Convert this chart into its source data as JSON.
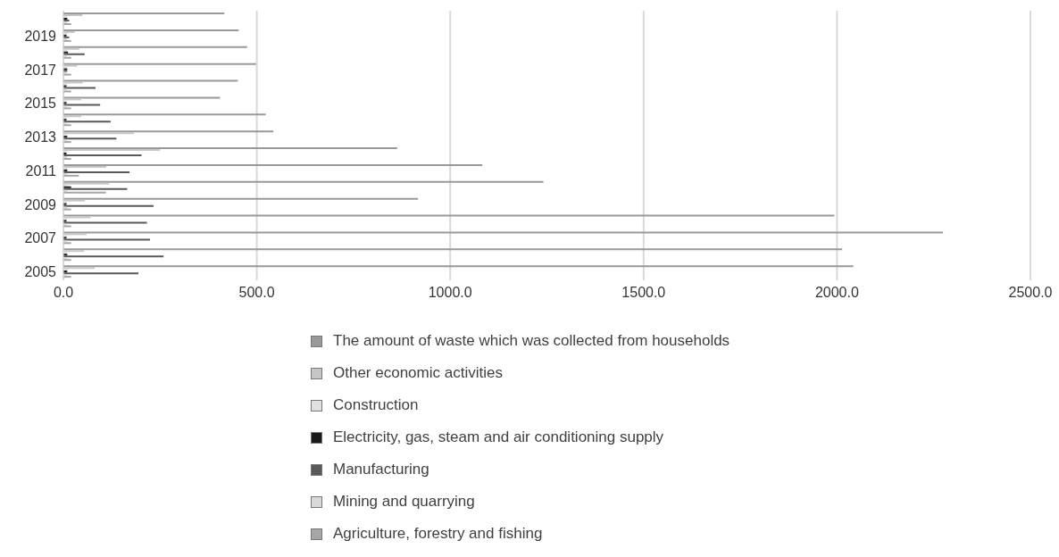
{
  "chart_data": {
    "type": "bar",
    "orientation": "horizontal",
    "categories": [
      null,
      "2019",
      null,
      "2017",
      null,
      "2015",
      null,
      "2013",
      null,
      "2011",
      null,
      "2009",
      null,
      "2007",
      null,
      "2005"
    ],
    "series": [
      {
        "name": "The amount of waste which was collected from households",
        "color": "#999999",
        "values": [
          416,
          453,
          475,
          498,
          451,
          405,
          523,
          543,
          863,
          1083,
          1241,
          917,
          1993,
          2274,
          2013,
          2042
        ]
      },
      {
        "name": "Other economic activities",
        "color": "#c6c6c6",
        "values": [
          49,
          29,
          41,
          36,
          50,
          46,
          46,
          183,
          250,
          111,
          118,
          56,
          70,
          60,
          53,
          81
        ]
      },
      {
        "name": "Construction",
        "color": "#e0e0e0",
        "values": [
          10,
          10,
          10,
          10,
          10,
          10,
          10,
          10,
          10,
          10,
          10,
          10,
          10,
          10,
          10,
          10
        ]
      },
      {
        "name": "Electricity, gas, steam and air conditioning supply",
        "color": "#1a1a1a",
        "values": [
          10,
          8,
          12,
          10,
          8,
          8,
          8,
          10,
          8,
          10,
          20,
          8,
          8,
          8,
          10,
          10
        ]
      },
      {
        "name": "Manufacturing",
        "color": "#595959",
        "values": [
          15,
          15,
          55,
          10,
          83,
          95,
          122,
          137,
          202,
          171,
          165,
          233,
          216,
          224,
          259,
          194
        ]
      },
      {
        "name": "Mining and quarrying",
        "color": "#d9d9d9",
        "values": [
          10,
          10,
          10,
          10,
          10,
          10,
          10,
          10,
          10,
          10,
          10,
          10,
          10,
          10,
          10,
          10
        ]
      },
      {
        "name": "Agriculture, forestry and fishing",
        "color": "#a6a6a6",
        "values": [
          20,
          20,
          20,
          20,
          20,
          20,
          20,
          20,
          20,
          40,
          110,
          20,
          20,
          20,
          20,
          20
        ]
      }
    ],
    "xlim": [
      0,
      2500
    ],
    "xticks": [
      {
        "value": 0,
        "label": "0.0"
      },
      {
        "value": 500,
        "label": "500.0"
      },
      {
        "value": 1000,
        "label": "1000.0"
      },
      {
        "value": 1500,
        "label": "1500.0"
      },
      {
        "value": 2000,
        "label": "2000.0"
      },
      {
        "value": 2500,
        "label": "2500.0"
      }
    ],
    "grid": "x",
    "legend": "bottom"
  }
}
